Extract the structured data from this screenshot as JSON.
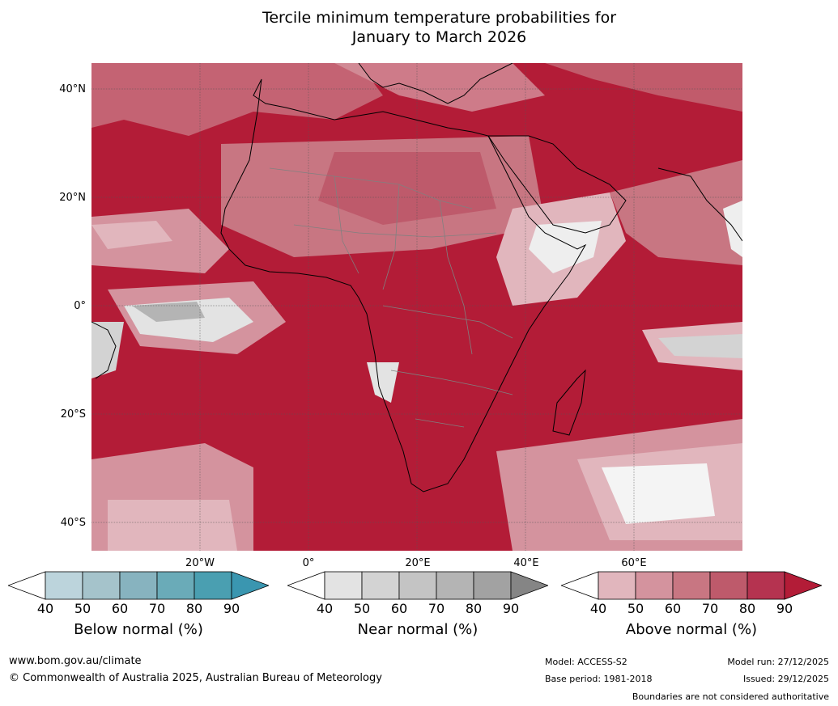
{
  "title": {
    "line1": "Tercile minimum temperature probabilities for",
    "line2": "January to March 2026"
  },
  "map": {
    "lat_labels": [
      "40°N",
      "20°N",
      "0°",
      "20°S",
      "40°S"
    ],
    "lon_labels": [
      "20°W",
      "0°",
      "20°E",
      "40°E",
      "60°E"
    ]
  },
  "legend": {
    "below": {
      "label": "Below normal (%)",
      "ticks": [
        "40",
        "50",
        "60",
        "70",
        "80",
        "90"
      ],
      "colors": [
        "#ffffff",
        "#bcd4dc",
        "#a5c3cb",
        "#87b3bf",
        "#6aabb8",
        "#4a9fb1",
        "#3a96b0"
      ]
    },
    "near": {
      "label": "Near normal (%)",
      "ticks": [
        "40",
        "50",
        "60",
        "70",
        "80",
        "90"
      ],
      "colors": [
        "#ffffff",
        "#e3e3e3",
        "#d3d3d3",
        "#c4c4c4",
        "#b4b4b4",
        "#a2a2a2",
        "#858585"
      ]
    },
    "above": {
      "label": "Above normal (%)",
      "ticks": [
        "40",
        "50",
        "60",
        "70",
        "80",
        "90"
      ],
      "colors": [
        "#ffffff",
        "#e1b6bd",
        "#d4939e",
        "#c87682",
        "#be5a6b",
        "#b53350",
        "#b31c37"
      ]
    }
  },
  "footer": {
    "website": "www.bom.gov.au/climate",
    "copyright": "© Commonwealth of Australia 2025, Australian Bureau of Meteorology",
    "model": "Model: ACCESS-S2",
    "base_period": "Base period: 1981-2018",
    "model_run": "Model run: 27/12/2025",
    "issued": "Issued: 29/12/2025",
    "disclaimer": "Boundaries are not considered authoritative"
  }
}
